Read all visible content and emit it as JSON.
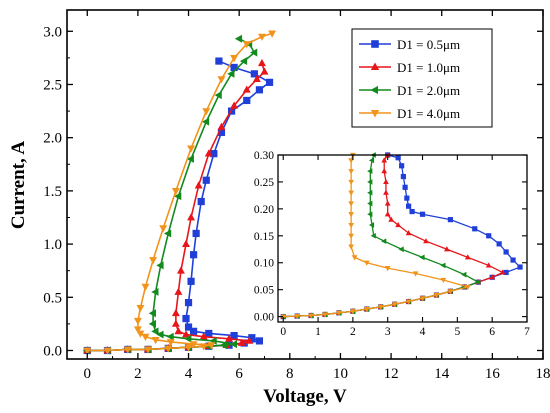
{
  "chart_data": {
    "type": "line",
    "title": "",
    "xlabel": "Voltage, V",
    "ylabel": "Current, A",
    "xlim": [
      -0.8,
      18
    ],
    "ylim": [
      -0.08,
      3.2
    ],
    "x_ticks": [
      "0",
      "2",
      "4",
      "6",
      "8",
      "10",
      "12",
      "14",
      "16",
      "18"
    ],
    "y_ticks": [
      "0.0",
      "0.5",
      "1.0",
      "1.5",
      "2.0",
      "2.5",
      "3.0"
    ],
    "grid": false,
    "legend": "top-right",
    "series": [
      {
        "name": "D1 = 0.5μm",
        "color": "#1f3fd8",
        "marker": "square",
        "points": [
          [
            0,
            0.0
          ],
          [
            0.8,
            0.0
          ],
          [
            1.6,
            0.01
          ],
          [
            2.4,
            0.01
          ],
          [
            3.2,
            0.02
          ],
          [
            4.0,
            0.03
          ],
          [
            4.8,
            0.04
          ],
          [
            5.6,
            0.05
          ],
          [
            6.2,
            0.07
          ],
          [
            6.8,
            0.09
          ],
          [
            6.5,
            0.12
          ],
          [
            5.8,
            0.14
          ],
          [
            4.8,
            0.16
          ],
          [
            4.2,
            0.18
          ],
          [
            4.0,
            0.22
          ],
          [
            3.9,
            0.3
          ],
          [
            4.0,
            0.45
          ],
          [
            4.1,
            0.65
          ],
          [
            4.2,
            0.9
          ],
          [
            4.3,
            1.1
          ],
          [
            4.5,
            1.4
          ],
          [
            4.7,
            1.6
          ],
          [
            5.0,
            1.85
          ],
          [
            5.3,
            2.05
          ],
          [
            5.7,
            2.25
          ],
          [
            6.3,
            2.35
          ],
          [
            6.8,
            2.45
          ],
          [
            7.2,
            2.52
          ],
          [
            6.6,
            2.6
          ],
          [
            5.8,
            2.66
          ],
          [
            5.2,
            2.72
          ]
        ]
      },
      {
        "name": "D1 = 1.0μm",
        "color": "#e8151b",
        "marker": "triangle-up",
        "points": [
          [
            0,
            0.0
          ],
          [
            0.8,
            0.0
          ],
          [
            1.6,
            0.01
          ],
          [
            2.4,
            0.01
          ],
          [
            3.2,
            0.02
          ],
          [
            4.0,
            0.03
          ],
          [
            4.8,
            0.04
          ],
          [
            5.5,
            0.05
          ],
          [
            6.1,
            0.07
          ],
          [
            6.4,
            0.09
          ],
          [
            5.6,
            0.11
          ],
          [
            4.6,
            0.13
          ],
          [
            3.9,
            0.15
          ],
          [
            3.6,
            0.18
          ],
          [
            3.5,
            0.25
          ],
          [
            3.5,
            0.35
          ],
          [
            3.6,
            0.55
          ],
          [
            3.7,
            0.75
          ],
          [
            3.9,
            1.0
          ],
          [
            4.1,
            1.25
          ],
          [
            4.4,
            1.55
          ],
          [
            4.8,
            1.85
          ],
          [
            5.3,
            2.1
          ],
          [
            5.8,
            2.3
          ],
          [
            6.3,
            2.45
          ],
          [
            6.7,
            2.55
          ],
          [
            7.0,
            2.62
          ],
          [
            6.9,
            2.7
          ]
        ]
      },
      {
        "name": "D1 = 2.0μm",
        "color": "#128a1e",
        "marker": "triangle-left",
        "points": [
          [
            0,
            0.0
          ],
          [
            0.8,
            0.0
          ],
          [
            1.6,
            0.01
          ],
          [
            2.4,
            0.01
          ],
          [
            3.2,
            0.02
          ],
          [
            4.0,
            0.03
          ],
          [
            4.8,
            0.04
          ],
          [
            5.4,
            0.05
          ],
          [
            5.8,
            0.06
          ],
          [
            5.0,
            0.09
          ],
          [
            4.0,
            0.11
          ],
          [
            3.3,
            0.13
          ],
          [
            2.9,
            0.15
          ],
          [
            2.7,
            0.18
          ],
          [
            2.6,
            0.25
          ],
          [
            2.6,
            0.35
          ],
          [
            2.7,
            0.55
          ],
          [
            2.9,
            0.8
          ],
          [
            3.2,
            1.1
          ],
          [
            3.6,
            1.45
          ],
          [
            4.1,
            1.8
          ],
          [
            4.7,
            2.15
          ],
          [
            5.2,
            2.4
          ],
          [
            5.7,
            2.6
          ],
          [
            6.2,
            2.72
          ],
          [
            6.6,
            2.8
          ],
          [
            6.4,
            2.88
          ],
          [
            6.0,
            2.93
          ]
        ]
      },
      {
        "name": "D1 = 4.0μm",
        "color": "#f2941b",
        "marker": "triangle-down",
        "points": [
          [
            0,
            0.0
          ],
          [
            0.8,
            0.0
          ],
          [
            1.6,
            0.01
          ],
          [
            2.4,
            0.01
          ],
          [
            3.2,
            0.02
          ],
          [
            4.0,
            0.03
          ],
          [
            4.6,
            0.04
          ],
          [
            4.9,
            0.05
          ],
          [
            4.2,
            0.06
          ],
          [
            3.3,
            0.08
          ],
          [
            2.7,
            0.1
          ],
          [
            2.3,
            0.13
          ],
          [
            2.1,
            0.16
          ],
          [
            2.0,
            0.2
          ],
          [
            2.0,
            0.28
          ],
          [
            2.1,
            0.4
          ],
          [
            2.3,
            0.6
          ],
          [
            2.6,
            0.85
          ],
          [
            3.0,
            1.15
          ],
          [
            3.5,
            1.5
          ],
          [
            4.1,
            1.9
          ],
          [
            4.7,
            2.25
          ],
          [
            5.3,
            2.55
          ],
          [
            5.8,
            2.75
          ],
          [
            6.3,
            2.88
          ],
          [
            6.9,
            2.95
          ],
          [
            7.3,
            2.98
          ]
        ]
      }
    ],
    "inset": {
      "xlim": [
        -0.15,
        7.0
      ],
      "ylim": [
        -0.01,
        0.3
      ],
      "x_ticks": [
        "0",
        "1",
        "2",
        "3",
        "4",
        "5",
        "6",
        "7"
      ],
      "y_ticks": [
        "0.00",
        "0.05",
        "0.10",
        "0.15",
        "0.20",
        "0.25",
        "0.30"
      ],
      "series": [
        {
          "name": "D1 = 0.5μm",
          "points": [
            [
              0,
              0.0
            ],
            [
              0.4,
              0.001
            ],
            [
              0.8,
              0.002
            ],
            [
              1.2,
              0.004
            ],
            [
              1.6,
              0.007
            ],
            [
              2.0,
              0.01
            ],
            [
              2.4,
              0.014
            ],
            [
              2.8,
              0.018
            ],
            [
              3.2,
              0.023
            ],
            [
              3.6,
              0.028
            ],
            [
              4.0,
              0.034
            ],
            [
              4.4,
              0.04
            ],
            [
              4.8,
              0.047
            ],
            [
              5.2,
              0.055
            ],
            [
              5.6,
              0.064
            ],
            [
              6.0,
              0.073
            ],
            [
              6.4,
              0.082
            ],
            [
              6.8,
              0.092
            ],
            [
              6.6,
              0.105
            ],
            [
              6.4,
              0.12
            ],
            [
              6.2,
              0.135
            ],
            [
              5.9,
              0.15
            ],
            [
              5.5,
              0.163
            ],
            [
              4.8,
              0.18
            ],
            [
              4.0,
              0.19
            ],
            [
              3.7,
              0.195
            ],
            [
              3.6,
              0.205
            ],
            [
              3.55,
              0.22
            ],
            [
              3.5,
              0.24
            ],
            [
              3.45,
              0.26
            ],
            [
              3.4,
              0.28
            ],
            [
              3.3,
              0.295
            ],
            [
              3.0,
              0.3
            ]
          ]
        },
        {
          "name": "D1 = 1.0μm",
          "points": [
            [
              0,
              0.0
            ],
            [
              0.4,
              0.001
            ],
            [
              0.8,
              0.002
            ],
            [
              1.2,
              0.004
            ],
            [
              1.6,
              0.007
            ],
            [
              2.0,
              0.01
            ],
            [
              2.4,
              0.014
            ],
            [
              2.8,
              0.018
            ],
            [
              3.2,
              0.023
            ],
            [
              3.6,
              0.028
            ],
            [
              4.0,
              0.034
            ],
            [
              4.4,
              0.04
            ],
            [
              4.8,
              0.047
            ],
            [
              5.2,
              0.055
            ],
            [
              5.6,
              0.064
            ],
            [
              6.0,
              0.073
            ],
            [
              6.3,
              0.082
            ],
            [
              5.9,
              0.095
            ],
            [
              5.3,
              0.11
            ],
            [
              4.7,
              0.125
            ],
            [
              4.1,
              0.14
            ],
            [
              3.6,
              0.155
            ],
            [
              3.3,
              0.17
            ],
            [
              3.1,
              0.18
            ],
            [
              3.0,
              0.19
            ],
            [
              3.0,
              0.21
            ],
            [
              2.95,
              0.23
            ],
            [
              2.95,
              0.25
            ],
            [
              2.9,
              0.27
            ],
            [
              2.9,
              0.29
            ],
            [
              3.0,
              0.3
            ]
          ]
        },
        {
          "name": "D1 = 2.0μm",
          "points": [
            [
              0,
              0.0
            ],
            [
              0.4,
              0.001
            ],
            [
              0.8,
              0.002
            ],
            [
              1.2,
              0.004
            ],
            [
              1.6,
              0.007
            ],
            [
              2.0,
              0.01
            ],
            [
              2.4,
              0.014
            ],
            [
              2.8,
              0.018
            ],
            [
              3.2,
              0.023
            ],
            [
              3.6,
              0.028
            ],
            [
              4.0,
              0.034
            ],
            [
              4.4,
              0.04
            ],
            [
              4.8,
              0.047
            ],
            [
              5.2,
              0.055
            ],
            [
              5.6,
              0.064
            ],
            [
              5.2,
              0.078
            ],
            [
              4.6,
              0.095
            ],
            [
              4.0,
              0.11
            ],
            [
              3.4,
              0.125
            ],
            [
              2.9,
              0.14
            ],
            [
              2.6,
              0.15
            ],
            [
              2.55,
              0.17
            ],
            [
              2.5,
              0.19
            ],
            [
              2.5,
              0.21
            ],
            [
              2.5,
              0.23
            ],
            [
              2.5,
              0.25
            ],
            [
              2.5,
              0.27
            ],
            [
              2.55,
              0.29
            ],
            [
              2.6,
              0.3
            ]
          ]
        },
        {
          "name": "D1 = 4.0μm",
          "points": [
            [
              0,
              0.0
            ],
            [
              0.4,
              0.001
            ],
            [
              0.8,
              0.002
            ],
            [
              1.2,
              0.004
            ],
            [
              1.6,
              0.007
            ],
            [
              2.0,
              0.01
            ],
            [
              2.4,
              0.014
            ],
            [
              2.8,
              0.018
            ],
            [
              3.2,
              0.023
            ],
            [
              3.6,
              0.028
            ],
            [
              4.0,
              0.034
            ],
            [
              4.4,
              0.04
            ],
            [
              4.8,
              0.047
            ],
            [
              5.3,
              0.055
            ],
            [
              4.6,
              0.068
            ],
            [
              3.8,
              0.08
            ],
            [
              3.0,
              0.09
            ],
            [
              2.4,
              0.1
            ],
            [
              2.05,
              0.11
            ],
            [
              1.95,
              0.13
            ],
            [
              1.95,
              0.15
            ],
            [
              1.95,
              0.17
            ],
            [
              1.95,
              0.19
            ],
            [
              1.95,
              0.21
            ],
            [
              1.95,
              0.23
            ],
            [
              1.95,
              0.25
            ],
            [
              1.95,
              0.27
            ],
            [
              1.95,
              0.29
            ],
            [
              2.0,
              0.3
            ]
          ]
        }
      ]
    }
  }
}
